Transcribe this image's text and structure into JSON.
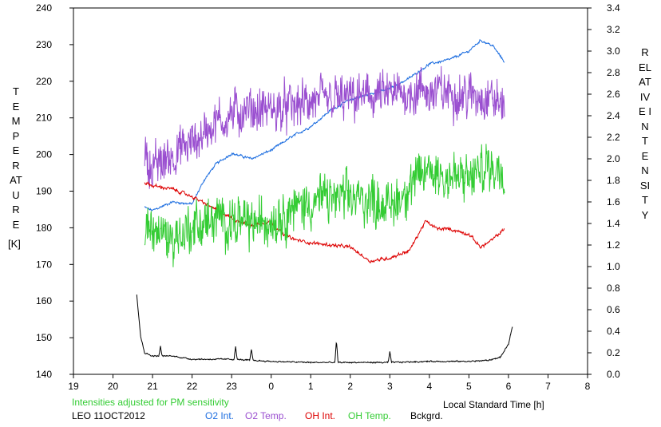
{
  "chart_data": {
    "type": "line",
    "xlabel": "Local Standard Time [h]",
    "ylabel_left": "TEMPERATURE",
    "ylabel_left_unit": "[K]",
    "ylabel_right": "RELATIVE INTENSITY",
    "note": "Intensities adjusted for PM sensitivity",
    "station_label": "LEO 11OCT2012",
    "xlim": [
      19,
      32
    ],
    "x_tick_labels": [
      "19",
      "20",
      "21",
      "22",
      "23",
      "0",
      "1",
      "2",
      "3",
      "4",
      "5",
      "6",
      "7",
      "8"
    ],
    "ylim_left": [
      140,
      240
    ],
    "y_left_ticks": [
      "140",
      "150",
      "160",
      "170",
      "180",
      "190",
      "200",
      "210",
      "220",
      "230",
      "240"
    ],
    "ylim_right": [
      0.0,
      3.4
    ],
    "y_right_ticks": [
      "0.0",
      "0.2",
      "0.4",
      "0.6",
      "0.8",
      "1.0",
      "1.2",
      "1.4",
      "1.6",
      "1.8",
      "2.0",
      "2.2",
      "2.4",
      "2.6",
      "2.8",
      "3.0",
      "3.2",
      "3.4"
    ],
    "grid": false,
    "legend_position": "bottom",
    "series": [
      {
        "name": "O2 Int.",
        "color": "#1f6fe0",
        "axis": "right",
        "noise": 0.015,
        "x": [
          20.8,
          21.0,
          21.5,
          22.0,
          22.3,
          22.6,
          23.0,
          23.5,
          24.0,
          24.5,
          25.0,
          25.5,
          26.0,
          26.5,
          27.0,
          27.5,
          28.0,
          28.5,
          29.0,
          29.3,
          29.6,
          29.9
        ],
        "values": [
          1.55,
          1.52,
          1.6,
          1.58,
          1.8,
          1.95,
          2.05,
          2.0,
          2.08,
          2.2,
          2.3,
          2.45,
          2.55,
          2.6,
          2.65,
          2.75,
          2.88,
          2.92,
          3.0,
          3.1,
          3.05,
          2.9
        ]
      },
      {
        "name": "O2 Temp.",
        "color": "#9a4fd0",
        "axis": "left",
        "noise": 5.5,
        "x": [
          20.8,
          21.0,
          21.5,
          22.0,
          22.5,
          23.0,
          23.5,
          24.0,
          24.5,
          25.0,
          25.5,
          26.0,
          26.5,
          27.0,
          27.5,
          28.0,
          28.5,
          29.0,
          29.5,
          29.9
        ],
        "values": [
          200,
          196,
          200,
          203,
          208,
          211,
          212,
          212,
          213,
          214,
          215,
          215,
          216,
          216,
          217,
          217,
          217,
          216,
          216,
          213
        ]
      },
      {
        "name": "OH Int.",
        "color": "#dd0000",
        "axis": "right",
        "noise": 0.02,
        "x": [
          20.8,
          21.0,
          21.5,
          22.0,
          22.5,
          23.0,
          23.5,
          24.0,
          24.3,
          24.6,
          25.0,
          25.5,
          26.0,
          26.5,
          27.0,
          27.5,
          27.9,
          28.2,
          28.5,
          29.0,
          29.3,
          29.6,
          29.9
        ],
        "values": [
          1.78,
          1.75,
          1.72,
          1.65,
          1.55,
          1.45,
          1.38,
          1.42,
          1.3,
          1.25,
          1.22,
          1.2,
          1.18,
          1.05,
          1.08,
          1.15,
          1.42,
          1.35,
          1.35,
          1.3,
          1.18,
          1.25,
          1.35
        ]
      },
      {
        "name": "OH Temp.",
        "color": "#33cc33",
        "axis": "left",
        "noise": 6,
        "x": [
          20.8,
          21.0,
          21.5,
          22.0,
          22.5,
          23.0,
          23.5,
          24.0,
          24.5,
          25.0,
          25.5,
          26.0,
          26.5,
          27.0,
          27.5,
          28.0,
          28.5,
          29.0,
          29.5,
          29.9
        ],
        "values": [
          180,
          180,
          177,
          180,
          182,
          182,
          181,
          182,
          185,
          187,
          188,
          188,
          188,
          186,
          191,
          196,
          194,
          193,
          197,
          196
        ]
      },
      {
        "name": "Bckgrd.",
        "color": "#000000",
        "axis": "right",
        "noise": 0.008,
        "x": [
          20.6,
          20.7,
          20.8,
          21.0,
          21.5,
          22.0,
          23.0,
          24.0,
          25.0,
          26.0,
          27.0,
          28.0,
          29.0,
          29.5,
          29.8,
          30.0,
          30.1
        ],
        "values": [
          0.74,
          0.35,
          0.2,
          0.17,
          0.17,
          0.14,
          0.14,
          0.12,
          0.11,
          0.11,
          0.11,
          0.12,
          0.12,
          0.13,
          0.16,
          0.28,
          0.44
        ],
        "spikes_x": [
          21.2,
          23.1,
          23.5,
          25.65,
          27.0
        ],
        "spikes_v": [
          0.09,
          0.12,
          0.1,
          0.2,
          0.1
        ]
      }
    ]
  }
}
